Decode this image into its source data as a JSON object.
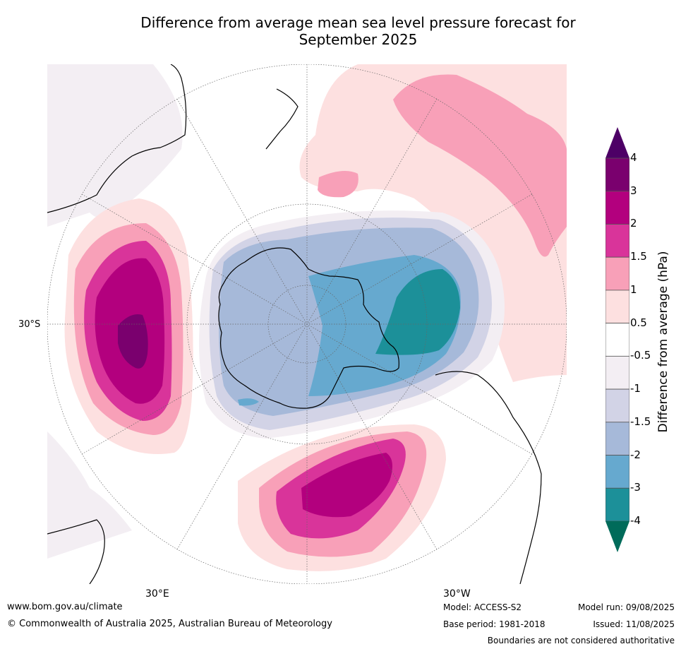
{
  "title_line1": "Difference from average mean sea level pressure forecast for",
  "title_line2": "September 2025",
  "map": {
    "lat_label": "30°S",
    "lon_labels": [
      "30°E",
      "30°W"
    ]
  },
  "colorbar": {
    "label": "Difference from average (hPa)",
    "tick_labels": [
      "4",
      "3",
      "2",
      "1.5",
      "1",
      "0.5",
      "-0.5",
      "-1",
      "-1.5",
      "-2",
      "-3",
      "-4"
    ],
    "colors": [
      "#7a006e",
      "#b3007e",
      "#d9349a",
      "#f8a0b8",
      "#fde0e0",
      "#ffffff",
      "#f3eef3",
      "#d2d3e6",
      "#a6b9d9",
      "#66a9cf",
      "#1c9099"
    ],
    "over_color": "#4d0066",
    "under_color": "#006b5a"
  },
  "footer": {
    "website": "www.bom.gov.au/climate",
    "copyright": "© Commonwealth of Australia 2025, Australian Bureau of Meteorology",
    "model": "Model: ACCESS-S2",
    "base_period": "Base period: 1981-2018",
    "model_run": "Model run: 09/08/2025",
    "issued": "Issued: 11/08/2025",
    "disclaimer": "Boundaries are not considered authoritative"
  }
}
